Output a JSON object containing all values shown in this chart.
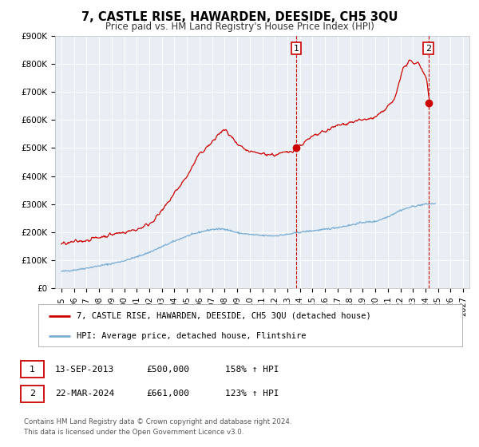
{
  "title": "7, CASTLE RISE, HAWARDEN, DEESIDE, CH5 3QU",
  "subtitle": "Price paid vs. HM Land Registry's House Price Index (HPI)",
  "ylim": [
    0,
    900000
  ],
  "xlim_start": 1994.5,
  "xlim_end": 2027.5,
  "background_color": "#ffffff",
  "plot_bg_color": "#e8eef4",
  "grid_color": "#ffffff",
  "red_line_color": "#cc0000",
  "blue_line_color": "#7aadd4",
  "marker1_date": 2013.71,
  "marker1_value": 500000,
  "marker2_date": 2024.23,
  "marker2_value": 661000,
  "vline1_x": 2013.71,
  "vline2_x": 2024.23,
  "legend_label_red": "7, CASTLE RISE, HAWARDEN, DEESIDE, CH5 3QU (detached house)",
  "legend_label_blue": "HPI: Average price, detached house, Flintshire",
  "table_row1": [
    "1",
    "13-SEP-2013",
    "£500,000",
    "158% ↑ HPI"
  ],
  "table_row2": [
    "2",
    "22-MAR-2024",
    "£661,000",
    "123% ↑ HPI"
  ],
  "footnote1": "Contains HM Land Registry data © Crown copyright and database right 2024.",
  "footnote2": "This data is licensed under the Open Government Licence v3.0.",
  "yticks": [
    0,
    100000,
    200000,
    300000,
    400000,
    500000,
    600000,
    700000,
    800000,
    900000
  ],
  "ytick_labels": [
    "£0",
    "£100K",
    "£200K",
    "£300K",
    "£400K",
    "£500K",
    "£600K",
    "£700K",
    "£800K",
    "£900K"
  ],
  "xticks": [
    1995,
    1996,
    1997,
    1998,
    1999,
    2000,
    2001,
    2002,
    2003,
    2004,
    2005,
    2006,
    2007,
    2008,
    2009,
    2010,
    2011,
    2012,
    2013,
    2014,
    2015,
    2016,
    2017,
    2018,
    2019,
    2020,
    2021,
    2022,
    2023,
    2024,
    2025,
    2026,
    2027
  ]
}
